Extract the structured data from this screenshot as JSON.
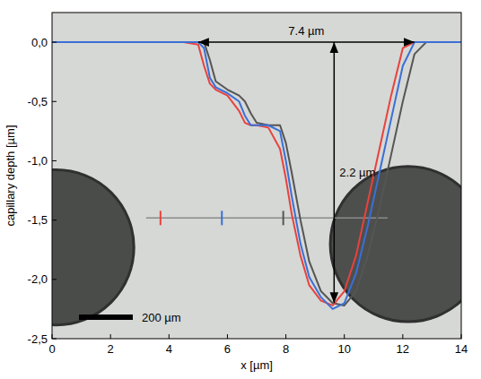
{
  "chart_data": {
    "type": "line",
    "xlabel": "x [µm]",
    "ylabel": "capillary depth [µm]",
    "xlim": [
      0,
      14
    ],
    "ylim": [
      -2.5,
      0.25
    ],
    "xticks": [
      0,
      2,
      4,
      6,
      8,
      10,
      12,
      14
    ],
    "yticks": [
      {
        "value": 0,
        "label": "0,0"
      },
      {
        "value": -0.5,
        "label": "-0,5"
      },
      {
        "value": -1,
        "label": "-1,0"
      },
      {
        "value": -1.5,
        "label": "-1,5"
      },
      {
        "value": -2,
        "label": "-2,0"
      },
      {
        "value": -2.5,
        "label": "-2,5"
      }
    ],
    "grid": false,
    "x": [
      0,
      4.5,
      5.0,
      5.2,
      5.4,
      5.6,
      6.0,
      6.4,
      6.6,
      6.8,
      7.0,
      7.4,
      7.8,
      8.0,
      8.2,
      8.5,
      8.8,
      9.2,
      9.6,
      10.0,
      10.4,
      10.8,
      11.2,
      11.6,
      12.0,
      12.4,
      12.8,
      14
    ],
    "series": [
      {
        "color": "#555555",
        "values": [
          0,
          0,
          0,
          0,
          -0.15,
          -0.33,
          -0.4,
          -0.45,
          -0.5,
          -0.6,
          -0.68,
          -0.7,
          -0.7,
          -0.85,
          -1.1,
          -1.5,
          -1.85,
          -2.1,
          -2.2,
          -2.22,
          -2.1,
          -1.8,
          -1.4,
          -0.95,
          -0.5,
          -0.1,
          0,
          0
        ]
      },
      {
        "color": "#e8423f",
        "values": [
          0,
          0,
          -0.02,
          -0.2,
          -0.35,
          -0.4,
          -0.45,
          -0.58,
          -0.68,
          -0.7,
          -0.7,
          -0.72,
          -0.9,
          -1.15,
          -1.45,
          -1.8,
          -2.05,
          -2.18,
          -2.22,
          -2.1,
          -1.8,
          -1.35,
          -0.9,
          -0.45,
          -0.05,
          0,
          0,
          0
        ]
      },
      {
        "color": "#3b6fd6",
        "values": [
          0,
          0,
          0,
          -0.05,
          -0.3,
          -0.38,
          -0.43,
          -0.5,
          -0.62,
          -0.7,
          -0.7,
          -0.7,
          -0.75,
          -1.0,
          -1.3,
          -1.7,
          -1.98,
          -2.15,
          -2.25,
          -2.2,
          -1.95,
          -1.55,
          -1.1,
          -0.65,
          -0.2,
          0,
          0,
          0
        ]
      }
    ],
    "annotations": [
      {
        "text": "7.4 µm",
        "x": [
          5.0,
          12.4
        ],
        "y": 0
      },
      {
        "text": "2.2 µm",
        "x": 9.65,
        "y": [
          0,
          -2.2
        ]
      }
    ],
    "scale_bar": {
      "text": "200 µm"
    }
  }
}
